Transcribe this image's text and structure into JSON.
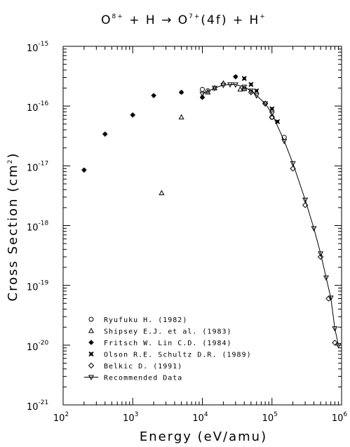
{
  "chart_data": {
    "type": "scatter",
    "title": "O8+ + H → O7+(4f) + H+",
    "title_parts": {
      "a": "O",
      "a_sup": "8+",
      "b": " + H → O",
      "b_sup": "7+",
      "c": "(4f) + H",
      "c_sup": "+"
    },
    "xlabel": "Energy (eV/amu)",
    "ylabel": "Cross Section (cm",
    "ylabel_sup": "2",
    "ylabel_end": ")",
    "xscale": "log",
    "yscale": "log",
    "xlim": [
      100,
      1000000
    ],
    "ylim": [
      1e-21,
      1e-15
    ],
    "x_ticks": [
      {
        "base": "10",
        "exp": "2"
      },
      {
        "base": "10",
        "exp": "3"
      },
      {
        "base": "10",
        "exp": "4"
      },
      {
        "base": "10",
        "exp": "5"
      },
      {
        "base": "10",
        "exp": "6"
      }
    ],
    "y_ticks": [
      {
        "base": "10",
        "exp": "-21"
      },
      {
        "base": "10",
        "exp": "-20"
      },
      {
        "base": "10",
        "exp": "-19"
      },
      {
        "base": "10",
        "exp": "-18"
      },
      {
        "base": "10",
        "exp": "-17"
      },
      {
        "base": "10",
        "exp": "-16"
      },
      {
        "base": "10",
        "exp": "-15"
      }
    ],
    "legend_position": "bottom-left",
    "series": [
      {
        "name": "Ryufuku H. (1982)",
        "marker": "circle",
        "x": [
          10000,
          12000,
          40000,
          100000,
          150000
        ],
        "y": [
          1.9e-16,
          1.8e-16,
          1.95e-16,
          6.5e-17,
          3e-17
        ]
      },
      {
        "name": "Shipsey E.J. et al. (1983)",
        "marker": "triangle",
        "x": [
          2600,
          5000,
          12000,
          15000,
          20000,
          35000,
          40000
        ],
        "y": [
          3.5e-18,
          6.5e-17,
          1.7e-16,
          2e-16,
          2.4e-16,
          1.9e-16,
          1.95e-16
        ]
      },
      {
        "name": "Fritsch W. Lin C.D. (1984)",
        "marker": "plus",
        "x": [
          200,
          400,
          1000,
          2000,
          5000,
          10000,
          30000
        ],
        "y": [
          8.5e-18,
          3.4e-17,
          7.1e-17,
          1.5e-16,
          1.7e-16,
          1.4e-16,
          3.1e-16
        ]
      },
      {
        "name": "Olson R.E. Schultz D.R. (1989)",
        "marker": "x",
        "x": [
          40000,
          50000,
          60000,
          100000,
          120000
        ],
        "y": [
          2.9e-16,
          2.3e-16,
          1.8e-16,
          9e-17,
          5.5e-17
        ]
      },
      {
        "name": "Belkic D. (1991)",
        "marker": "diamond",
        "x": [
          50000,
          80000,
          100000,
          200000,
          300000,
          500000,
          650000,
          800000
        ],
        "y": [
          1.7e-16,
          1.1e-16,
          6.5e-17,
          9e-18,
          2.2e-18,
          3e-19,
          6e-20,
          1.1e-20
        ]
      },
      {
        "name": "Recommended Data",
        "marker": "triangle-down",
        "line": true,
        "x": [
          10000,
          15000,
          20000,
          25000,
          30000,
          40000,
          50000,
          60000,
          80000,
          100000,
          150000,
          200000,
          300000,
          400000,
          500000,
          600000,
          700000,
          800000,
          900000
        ],
        "y": [
          1.6e-16,
          2e-16,
          2.25e-16,
          2.3e-16,
          2.28e-16,
          2.1e-16,
          1.8e-16,
          1.5e-16,
          1.1e-16,
          7.5e-17,
          2.6e-17,
          1.1e-17,
          2.7e-18,
          9e-19,
          3.4e-19,
          1.35e-19,
          6.2e-20,
          1.9e-20,
          1e-20
        ]
      }
    ]
  }
}
